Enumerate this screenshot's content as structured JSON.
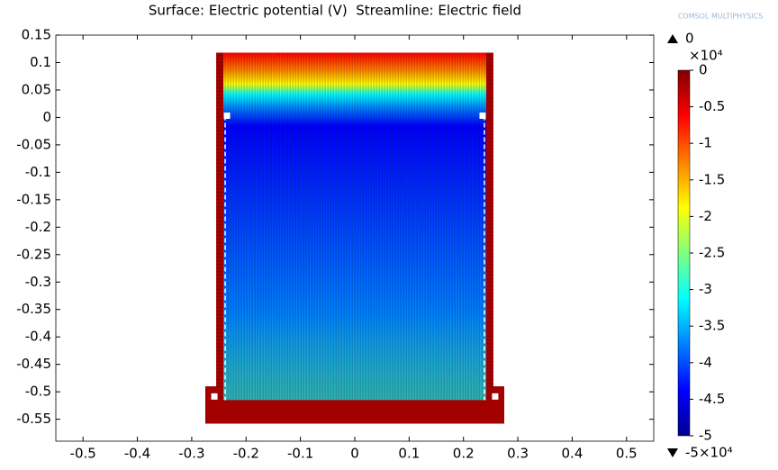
{
  "chart_data": {
    "type": "surface",
    "title": "Surface: Electric potential (V)  Streamline: Electric field",
    "logo": "COMSOL MULTIPHYSICS",
    "xlim": [
      -0.55,
      0.55
    ],
    "ylim": [
      -0.59,
      0.15
    ],
    "xticks": [
      -0.5,
      -0.4,
      -0.3,
      -0.2,
      -0.1,
      0,
      0.1,
      0.2,
      0.3,
      0.4,
      0.5
    ],
    "yticks": [
      -0.55,
      -0.5,
      -0.45,
      -0.4,
      -0.35,
      -0.3,
      -0.25,
      -0.2,
      -0.15,
      -0.1,
      -0.05,
      0,
      0.05,
      0.1,
      0.15
    ],
    "regions": [
      {
        "x": [
          -0.255,
          0.255
        ],
        "y": [
          -0.52,
          0.118
        ]
      },
      {
        "x": [
          -0.275,
          0.275
        ],
        "y": [
          -0.558,
          -0.49
        ]
      }
    ],
    "colorbar": {
      "clim": [
        -50000,
        0
      ],
      "multiplier": "×10⁴",
      "max": 0,
      "min": {
        "value": -50000,
        "label": "-5×10⁴"
      },
      "ticks": [
        0,
        {
          "value": -5000,
          "label": "-0.5"
        },
        {
          "value": -10000,
          "label": "-1"
        },
        {
          "value": -15000,
          "label": "-1.5"
        },
        {
          "value": -20000,
          "label": "-2"
        },
        {
          "value": -25000,
          "label": "-2.5"
        },
        {
          "value": -30000,
          "label": "-3"
        },
        {
          "value": -35000,
          "label": "-3.5"
        },
        {
          "value": -40000,
          "label": "-4"
        },
        {
          "value": -45000,
          "label": "-4.5"
        },
        {
          "value": -50000,
          "label": "-5"
        }
      ],
      "colormap": [
        "#7f0000",
        "#ff0000",
        "#ff8000",
        "#ffff00",
        "#80ff80",
        "#00ffff",
        "#0080ff",
        "#0000ff",
        "#00008f"
      ]
    }
  }
}
